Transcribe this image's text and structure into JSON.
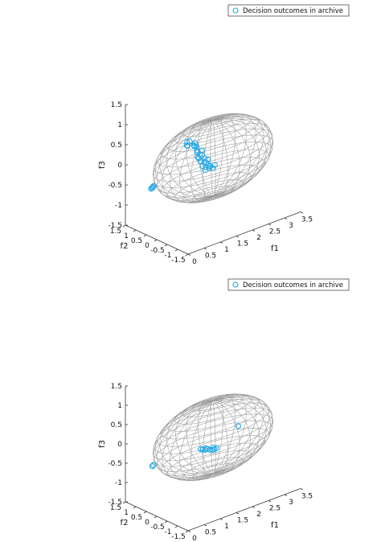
{
  "chart_data": [
    {
      "type": "scatter3d",
      "surface": "ellipsoid-wireframe",
      "legend": {
        "label": "Decision outcomes in archive",
        "placement": "top-right"
      },
      "marker": {
        "shape": "circle",
        "color": "#1ea7e6"
      },
      "surface_color": "#9a9a9a",
      "axes": {
        "x": {
          "label": "f1",
          "range": [
            0,
            3.5
          ],
          "ticks": [
            "0",
            "0.5",
            "1",
            "1.5",
            "2",
            "2.5",
            "3",
            "3.5"
          ]
        },
        "y": {
          "label": "f2",
          "range": [
            -1.5,
            1.5
          ],
          "ticks": [
            "-1.5",
            "-1",
            "-0.5",
            "0",
            "0.5",
            "1",
            "1.5"
          ]
        },
        "z": {
          "label": "f3",
          "range": [
            -1.5,
            1.5
          ],
          "ticks": [
            "-1.5",
            "-1",
            "-0.5",
            "0",
            "0.5",
            "1",
            "1.5"
          ]
        }
      },
      "ellipsoid": {
        "center": [
          1.75,
          0,
          0
        ],
        "radii": [
          1.75,
          1.0,
          0.95
        ]
      },
      "points": [
        {
          "x": 0.35,
          "y": 0.75,
          "z": -0.5
        },
        {
          "x": 0.37,
          "y": 0.72,
          "z": -0.45
        },
        {
          "x": 0.33,
          "y": 0.78,
          "z": -0.52
        },
        {
          "x": 0.36,
          "y": 0.74,
          "z": -0.48
        },
        {
          "x": 1.2,
          "y": 0.4,
          "z": 0.38
        },
        {
          "x": 1.35,
          "y": 0.5,
          "z": 0.42
        },
        {
          "x": 1.45,
          "y": 0.45,
          "z": 0.3
        },
        {
          "x": 1.5,
          "y": 0.5,
          "z": 0.25
        },
        {
          "x": 1.55,
          "y": 0.45,
          "z": 0.15
        },
        {
          "x": 1.6,
          "y": 0.4,
          "z": 0.05
        },
        {
          "x": 1.6,
          "y": 0.5,
          "z": -0.05
        },
        {
          "x": 1.65,
          "y": 0.45,
          "z": -0.15
        },
        {
          "x": 1.65,
          "y": 0.35,
          "z": -0.25
        },
        {
          "x": 1.7,
          "y": 0.3,
          "z": -0.35
        },
        {
          "x": 1.75,
          "y": 0.35,
          "z": -0.3
        },
        {
          "x": 1.8,
          "y": 0.3,
          "z": -0.25
        },
        {
          "x": 1.7,
          "y": 0.45,
          "z": 0.1
        },
        {
          "x": 1.75,
          "y": 0.4,
          "z": -0.1
        },
        {
          "x": 1.85,
          "y": 0.3,
          "z": -0.3
        },
        {
          "x": 1.9,
          "y": 0.25,
          "z": -0.35
        },
        {
          "x": 1.55,
          "y": 0.55,
          "z": 0.3
        },
        {
          "x": 1.6,
          "y": 0.55,
          "z": 0.2
        },
        {
          "x": 1.72,
          "y": 0.38,
          "z": -0.18
        },
        {
          "x": 1.8,
          "y": 0.32,
          "z": -0.12
        },
        {
          "x": 1.95,
          "y": 0.22,
          "z": -0.28
        },
        {
          "x": 1.68,
          "y": 0.42,
          "z": 0.0
        },
        {
          "x": 1.62,
          "y": 0.48,
          "z": -0.08
        },
        {
          "x": 1.58,
          "y": 0.5,
          "z": 0.08
        },
        {
          "x": 1.82,
          "y": 0.28,
          "z": -0.33
        },
        {
          "x": 1.77,
          "y": 0.36,
          "z": -0.2
        },
        {
          "x": 1.3,
          "y": 0.55,
          "z": 0.4
        },
        {
          "x": 1.25,
          "y": 0.45,
          "z": 0.35
        }
      ]
    },
    {
      "type": "scatter3d",
      "surface": "ellipsoid-wireframe",
      "legend": {
        "label": "Decision outcomes in archive",
        "placement": "top-right"
      },
      "marker": {
        "shape": "circle",
        "color": "#1ea7e6"
      },
      "surface_color": "#9a9a9a",
      "axes": {
        "x": {
          "label": "f1",
          "range": [
            0,
            3.5
          ],
          "ticks": [
            "0",
            "0.5",
            "1",
            "1.5",
            "2",
            "2.5",
            "3",
            "3.5"
          ]
        },
        "y": {
          "label": "f2",
          "range": [
            -1.5,
            1.5
          ],
          "ticks": [
            "-1.5",
            "-1",
            "-0.5",
            "0",
            "0.5",
            "1",
            "1.5"
          ]
        },
        "z": {
          "label": "f3",
          "range": [
            -1.5,
            1.5
          ],
          "ticks": [
            "-1.5",
            "-1",
            "-0.5",
            "0",
            "0.5",
            "1",
            "1.5"
          ]
        }
      },
      "ellipsoid": {
        "center": [
          1.75,
          0,
          0
        ],
        "radii": [
          1.75,
          1.0,
          0.95
        ]
      },
      "points": [
        {
          "x": 0.35,
          "y": 0.75,
          "z": -0.5
        },
        {
          "x": 0.37,
          "y": 0.73,
          "z": -0.47
        },
        {
          "x": 1.5,
          "y": 0.2,
          "z": -0.28
        },
        {
          "x": 1.55,
          "y": 0.18,
          "z": -0.3
        },
        {
          "x": 1.6,
          "y": 0.15,
          "z": -0.32
        },
        {
          "x": 1.65,
          "y": 0.12,
          "z": -0.3
        },
        {
          "x": 1.72,
          "y": 0.1,
          "z": -0.34
        },
        {
          "x": 1.78,
          "y": 0.08,
          "z": -0.36
        },
        {
          "x": 1.83,
          "y": 0.05,
          "z": -0.35
        },
        {
          "x": 1.88,
          "y": 0.03,
          "z": -0.33
        },
        {
          "x": 1.62,
          "y": 0.14,
          "z": -0.28
        },
        {
          "x": 1.8,
          "y": 0.07,
          "z": -0.3
        },
        {
          "x": 2.6,
          "y": 0.1,
          "z": 0.0
        }
      ]
    }
  ]
}
